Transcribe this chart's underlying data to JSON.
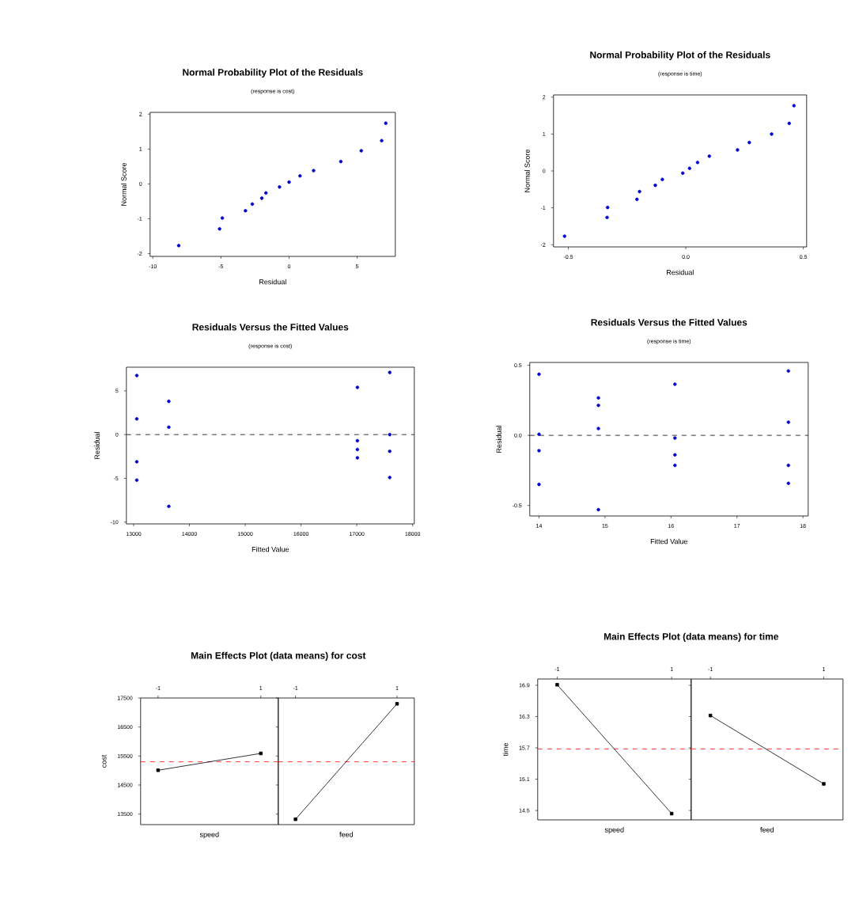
{
  "chart_data": [
    {
      "type": "scatter",
      "title": "Normal Probability Plot of the Residuals",
      "subtitle": "(response is cost)",
      "xlabel": "Residual",
      "ylabel": "Normal Score",
      "marker": "circle",
      "color": "#0000cc",
      "x": [
        -8.1,
        -5.1,
        -4.9,
        -3.2,
        -2.7,
        -2.0,
        -1.7,
        -0.7,
        0.0,
        0.8,
        1.8,
        3.8,
        5.3,
        6.8,
        7.1
      ],
      "values": [
        -1.77,
        -1.29,
        -0.98,
        -0.77,
        -0.58,
        -0.41,
        -0.26,
        -0.09,
        0.05,
        0.23,
        0.38,
        0.64,
        0.95,
        1.24,
        1.74
      ],
      "xlim": [
        -10.2,
        7.8
      ],
      "ylim": [
        -2.08,
        2.05
      ],
      "xticks": [
        -10,
        -5,
        0,
        5
      ],
      "yticks": [
        -2,
        -1,
        0,
        1,
        2
      ]
    },
    {
      "type": "scatter",
      "title": "Normal Probability Plot of the Residuals",
      "subtitle": "(response is time)",
      "xlabel": "Residual",
      "ylabel": "Normal Score",
      "marker": "circle",
      "color": "#0000cc",
      "x": [
        -0.516,
        -0.335,
        -0.333,
        -0.208,
        -0.197,
        -0.13,
        -0.1,
        -0.013,
        0.016,
        0.05,
        0.1,
        0.22,
        0.27,
        0.365,
        0.44,
        0.46
      ],
      "values": [
        -1.77,
        -1.26,
        -0.99,
        -0.77,
        -0.56,
        -0.39,
        -0.23,
        -0.06,
        0.07,
        0.23,
        0.4,
        0.57,
        0.77,
        1.0,
        1.29,
        1.77
      ],
      "xlim": [
        -0.563,
        0.514
      ],
      "ylim": [
        -2.06,
        2.06
      ],
      "xticks": [
        -0.5,
        {
          "value": 0,
          "label": "0.0"
        },
        0.5
      ],
      "yticks": [
        -2,
        -1,
        0,
        1,
        2
      ]
    },
    {
      "type": "scatter",
      "title": "Residuals Versus the Fitted Values",
      "subtitle": "(response is cost)",
      "xlabel": "Fitted Value",
      "ylabel": "Residual",
      "marker": "circle",
      "color": "#0000cc",
      "x": [
        13056,
        13056,
        13056,
        13056,
        13630,
        13630,
        13630,
        17010,
        17010,
        17010,
        17010,
        17590,
        17590,
        17590,
        17590
      ],
      "values": [
        6.75,
        1.8,
        -3.1,
        -5.2,
        3.8,
        0.85,
        -8.2,
        5.4,
        -0.7,
        -1.7,
        -2.65,
        7.1,
        0,
        -1.9,
        -4.9
      ],
      "xlim": [
        12870,
        18030
      ],
      "ylim": [
        -10.2,
        7.7
      ],
      "xticks": [
        13000,
        14000,
        15000,
        16000,
        17000,
        18000
      ],
      "yticks": [
        -10,
        -5,
        0,
        5
      ],
      "ref_lines": [
        {
          "axis": "y",
          "value": 0,
          "color": "#000000",
          "line_style": "dashed"
        }
      ]
    },
    {
      "type": "scatter",
      "title": "Residuals Versus the Fitted Values",
      "subtitle": "(response is time)",
      "xlabel": "Fitted Value",
      "ylabel": "Residual",
      "marker": "circle",
      "color": "#0000cc",
      "x": [
        14.0,
        14.0,
        14.0,
        14.0,
        14.9,
        14.9,
        14.9,
        14.9,
        16.06,
        16.06,
        16.06,
        16.06,
        17.78,
        17.78,
        17.78,
        17.78
      ],
      "values": [
        0.436,
        0.008,
        -0.109,
        -0.35,
        0.267,
        0.214,
        0.049,
        -0.53,
        0.365,
        -0.019,
        -0.139,
        -0.214,
        0.459,
        0.094,
        -0.214,
        -0.342
      ],
      "xlim": [
        13.86,
        18.08
      ],
      "ylim": [
        -0.575,
        0.52
      ],
      "xticks": [
        14,
        15,
        16,
        17,
        18
      ],
      "yticks": [
        -0.5,
        {
          "value": 0,
          "label": "0.0"
        },
        0.5
      ],
      "ref_lines": [
        {
          "axis": "y",
          "value": 0,
          "color": "#000000",
          "line_style": "dashed"
        }
      ]
    },
    {
      "type": "line",
      "title": "Main Effects Plot (data means) for cost",
      "xlabel": "speed",
      "ylabel": "cost",
      "marker": "square",
      "color": "#000000",
      "categories": [
        "-1",
        "1"
      ],
      "values": [
        15010,
        15590
      ],
      "ylim": [
        13136,
        17500
      ],
      "yticks": [
        13500,
        14500,
        15500,
        16500,
        17500
      ],
      "ref_lines": [
        {
          "axis": "y",
          "value": 15300,
          "color": "#ff0000",
          "line_style": "dashed"
        }
      ]
    },
    {
      "type": "line",
      "xlabel": "feed",
      "marker": "square",
      "color": "#000000",
      "tick_labels": "x",
      "categories": [
        "-1",
        "1"
      ],
      "values": [
        13320,
        17300
      ],
      "ylim": [
        13136,
        17500
      ],
      "yticks": [
        13500,
        14500,
        15500,
        16500,
        17500
      ],
      "ref_lines": [
        {
          "axis": "y",
          "value": 15300,
          "color": "#ff0000",
          "line_style": "dashed"
        }
      ]
    },
    {
      "type": "line",
      "title": "Main Effects Plot (data means) for time",
      "xlabel": "speed",
      "ylabel": "time",
      "marker": "square",
      "color": "#000000",
      "categories": [
        "-1",
        "1"
      ],
      "values": [
        16.91,
        14.44
      ],
      "ylim": [
        14.32,
        17.02
      ],
      "yticks": [
        14.5,
        15.1,
        15.7,
        16.3,
        16.9
      ],
      "ref_lines": [
        {
          "axis": "y",
          "value": 15.68,
          "color": "#ff0000",
          "line_style": "dashed"
        }
      ]
    },
    {
      "type": "line",
      "xlabel": "feed",
      "marker": "square",
      "color": "#000000",
      "tick_labels": "x",
      "categories": [
        "-1",
        "1"
      ],
      "values": [
        16.32,
        15.01
      ],
      "ylim": [
        14.32,
        17.02
      ],
      "yticks": [
        14.5,
        15.1,
        15.7,
        16.3,
        16.9
      ],
      "ref_lines": [
        {
          "axis": "y",
          "value": 15.68,
          "color": "#ff0000",
          "line_style": "dashed"
        }
      ]
    }
  ]
}
